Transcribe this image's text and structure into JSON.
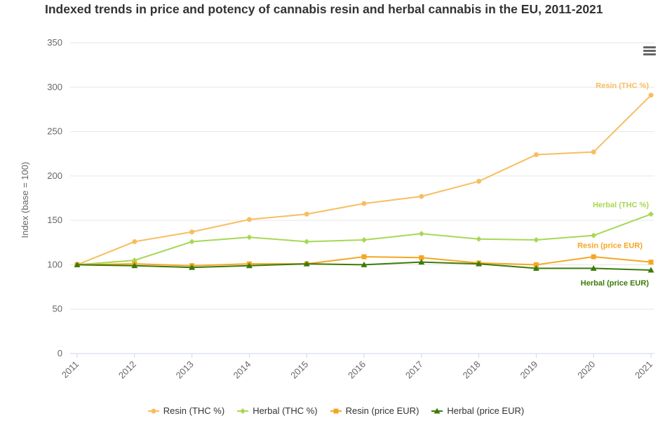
{
  "chart_data": {
    "type": "line",
    "title": "Indexed trends in price and potency of cannabis resin and herbal cannabis in the EU, 2011-2021",
    "ylabel": "Index (base = 100)",
    "xlabel": "",
    "ylim": [
      0,
      350
    ],
    "yticks": [
      0,
      50,
      100,
      150,
      200,
      250,
      300,
      350
    ],
    "x": [
      "2011",
      "2012",
      "2013",
      "2014",
      "2015",
      "2016",
      "2017",
      "2018",
      "2019",
      "2020",
      "2021"
    ],
    "grid": true,
    "legend_position": "bottom",
    "series": [
      {
        "name": "Resin (THC %)",
        "color": "#f7be60",
        "marker": "circle",
        "end_label": "Resin (THC %)",
        "values": [
          100,
          126,
          137,
          151,
          157,
          169,
          177,
          194,
          224,
          227,
          291
        ]
      },
      {
        "name": "Herbal (THC %)",
        "color": "#a6d854",
        "marker": "diamond",
        "end_label": "Herbal (THC %)",
        "values": [
          100,
          105,
          126,
          131,
          126,
          128,
          135,
          129,
          128,
          133,
          157
        ]
      },
      {
        "name": "Resin (price EUR)",
        "color": "#f5a623",
        "marker": "square",
        "end_label": "Resin (price EUR)",
        "values": [
          100,
          101,
          99,
          101,
          101,
          109,
          108,
          102,
          100,
          109,
          103
        ]
      },
      {
        "name": "Herbal (price EUR)",
        "color": "#3d7a0a",
        "marker": "triangle",
        "end_label": "Herbal (price EUR)",
        "values": [
          100,
          99,
          97,
          99,
          101,
          100,
          103,
          101,
          96,
          96,
          94
        ]
      }
    ]
  },
  "toolbar": {
    "menu_icon": "hamburger-menu-icon"
  }
}
